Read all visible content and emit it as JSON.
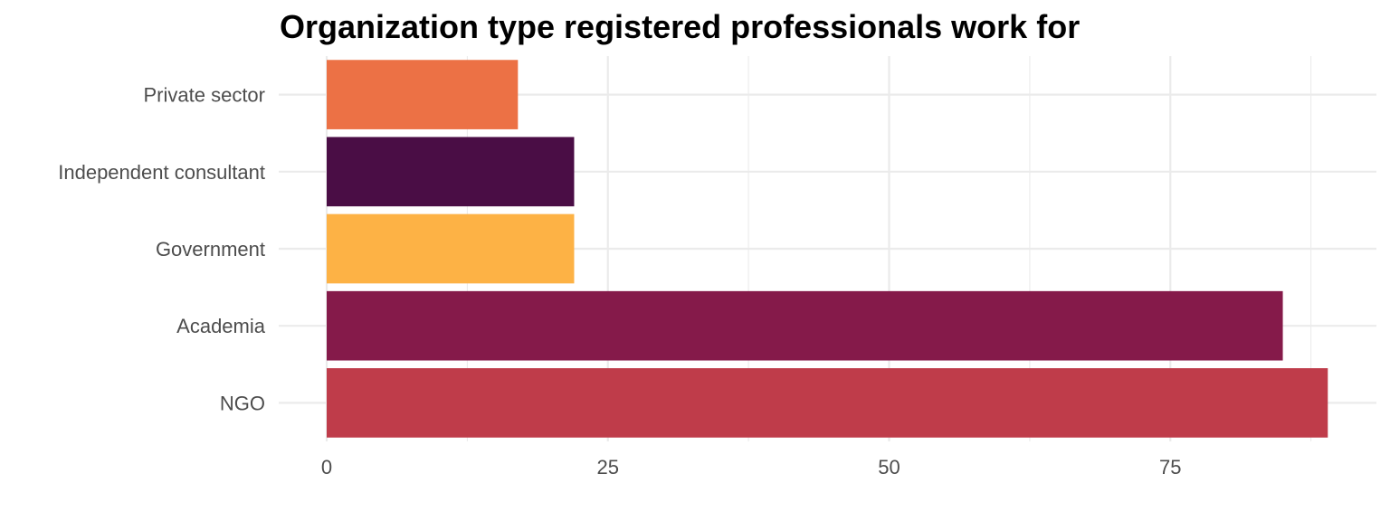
{
  "chart_data": {
    "type": "bar",
    "orientation": "horizontal",
    "title": "Organization type registered professionals work for",
    "xlabel": "",
    "ylabel": "",
    "categories": [
      "NGO",
      "Academia",
      "Government",
      "Independent consultant",
      "Private sector"
    ],
    "values": [
      89,
      85,
      22,
      22,
      17
    ],
    "colors": [
      "#BF3C4A",
      "#851A4A",
      "#FDB245",
      "#4A0D45",
      "#EC7145"
    ],
    "xlim": [
      0,
      93
    ],
    "x_ticks": [
      0,
      25,
      50,
      75
    ],
    "x_minor_ticks": [
      12.5,
      37.5,
      62.5,
      87.5
    ],
    "grid": true,
    "legend": "none"
  }
}
